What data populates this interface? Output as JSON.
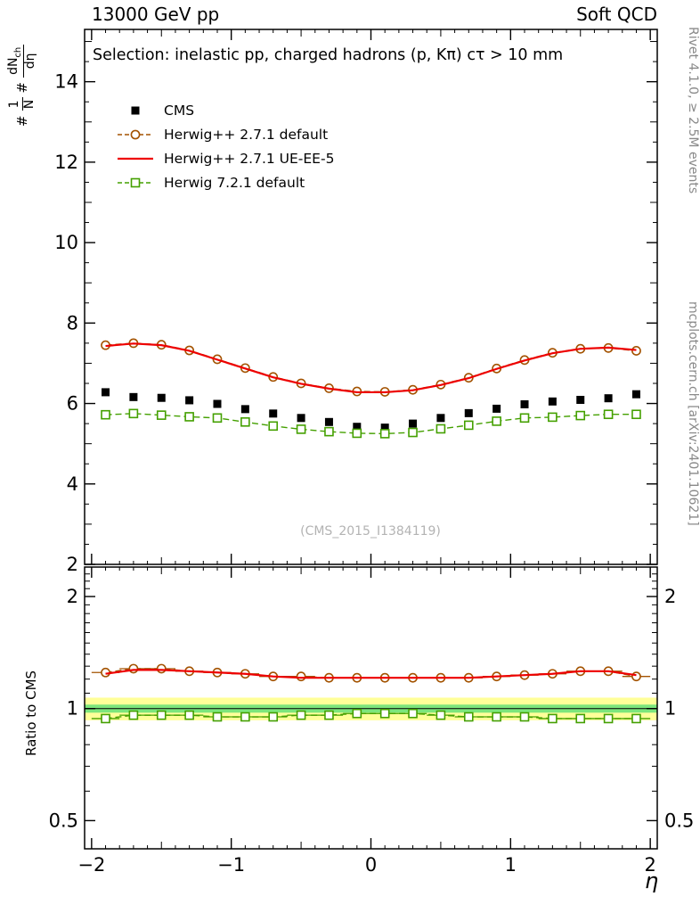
{
  "header": {
    "left": "13000 GeV pp",
    "right": "Soft QCD"
  },
  "side_notes": {
    "right_top": "Rivet 4.1.0, ≥ 2.5M events",
    "right_bottom": "mcplots.cern.ch [arXiv:2401.10621]"
  },
  "watermark": "(CMS_2015_I1384119)",
  "ylabel_parts": {
    "hash1": "#",
    "frac1_num": "1",
    "frac1_den": "N",
    "hash2": "#",
    "frac2_num": "dN",
    "frac2_num_sub": "ch",
    "frac2_den": "dη"
  },
  "chart_data": {
    "type": "line",
    "title": "Selection: inelastic pp, charged hadrons (p, Kπ) cτ > 10 mm",
    "xlabel": "η",
    "ylabel": "1/N dN_ch/dη",
    "ratio_ylabel": "Ratio to CMS",
    "legend_position": "top-left",
    "grid": false,
    "xlim": [
      -2.05,
      2.05
    ],
    "ylim": [
      2,
      15.3
    ],
    "ratio_ylim": [
      0.42,
      2.4
    ],
    "ratio_scale": "log",
    "xticks": {
      "values": [
        -2,
        -1,
        0,
        1,
        2
      ],
      "labels": [
        "−2",
        "−1",
        "0",
        "1",
        "2"
      ]
    },
    "yticks": {
      "values": [
        2,
        4,
        6,
        8,
        10,
        12,
        14
      ],
      "labels": [
        "2",
        "4",
        "6",
        "8",
        "10",
        "12",
        "14"
      ]
    },
    "ratio_yticks": {
      "values": [
        0.5,
        1,
        2
      ],
      "labels": [
        "0.5",
        "1",
        "2"
      ]
    },
    "x": [
      -1.9,
      -1.7,
      -1.5,
      -1.3,
      -1.1,
      -0.9,
      -0.7,
      -0.5,
      -0.3,
      -0.1,
      0.1,
      0.3,
      0.5,
      0.7,
      0.9,
      1.1,
      1.3,
      1.5,
      1.7,
      1.9
    ],
    "series": [
      {
        "name": "CMS",
        "type": "points",
        "marker": "filled-square",
        "color": "#000000",
        "values": [
          6.28,
          6.16,
          6.14,
          6.08,
          5.99,
          5.86,
          5.75,
          5.64,
          5.54,
          5.42,
          5.4,
          5.5,
          5.64,
          5.76,
          5.87,
          5.98,
          6.05,
          6.09,
          6.13,
          6.23
        ]
      },
      {
        "name": "Herwig++ 2.7.1 default",
        "type": "line-points",
        "marker": "open-circle",
        "color": "#a35200",
        "line": "dashed",
        "values": [
          7.45,
          7.5,
          7.46,
          7.32,
          7.1,
          6.88,
          6.66,
          6.5,
          6.38,
          6.3,
          6.29,
          6.34,
          6.47,
          6.64,
          6.87,
          7.08,
          7.26,
          7.36,
          7.38,
          7.31
        ]
      },
      {
        "name": "Herwig++ 2.7.1 UE-EE-5",
        "type": "line",
        "color": "#ee0000",
        "line": "solid",
        "values": [
          7.43,
          7.49,
          7.45,
          7.31,
          7.09,
          6.87,
          6.65,
          6.49,
          6.37,
          6.28,
          6.28,
          6.33,
          6.46,
          6.63,
          6.86,
          7.07,
          7.25,
          7.36,
          7.39,
          7.33
        ]
      },
      {
        "name": "Herwig 7.2.1 default",
        "type": "line-points",
        "marker": "open-square",
        "color": "#44a000",
        "line": "dashed",
        "values": [
          5.72,
          5.75,
          5.71,
          5.67,
          5.64,
          5.54,
          5.44,
          5.36,
          5.3,
          5.26,
          5.25,
          5.28,
          5.37,
          5.46,
          5.56,
          5.64,
          5.66,
          5.7,
          5.73,
          5.73
        ]
      }
    ],
    "ratio_series": [
      {
        "name": "Herwig++ 2.7.1 default",
        "marker": "open-circle",
        "color": "#a35200",
        "line": "dashed",
        "values": [
          1.25,
          1.28,
          1.28,
          1.26,
          1.25,
          1.24,
          1.22,
          1.22,
          1.21,
          1.21,
          1.21,
          1.21,
          1.21,
          1.21,
          1.22,
          1.23,
          1.24,
          1.26,
          1.26,
          1.22
        ]
      },
      {
        "name": "Herwig++ 2.7.1 UE-EE-5",
        "color": "#ee0000",
        "line": "solid",
        "values": [
          1.24,
          1.27,
          1.27,
          1.26,
          1.25,
          1.24,
          1.22,
          1.21,
          1.21,
          1.21,
          1.21,
          1.21,
          1.21,
          1.21,
          1.22,
          1.23,
          1.24,
          1.26,
          1.26,
          1.23
        ]
      },
      {
        "name": "Herwig 7.2.1 default",
        "marker": "open-square",
        "color": "#44a000",
        "line": "dashed",
        "values": [
          0.94,
          0.96,
          0.96,
          0.96,
          0.95,
          0.95,
          0.95,
          0.96,
          0.96,
          0.97,
          0.97,
          0.97,
          0.96,
          0.95,
          0.95,
          0.95,
          0.94,
          0.94,
          0.94,
          0.94
        ]
      }
    ],
    "bands": [
      {
        "name": "outer",
        "color": "#ffff99",
        "lo": 0.93,
        "hi": 1.07
      },
      {
        "name": "inner",
        "color": "#7ce57c",
        "lo": 0.975,
        "hi": 1.025
      }
    ]
  }
}
